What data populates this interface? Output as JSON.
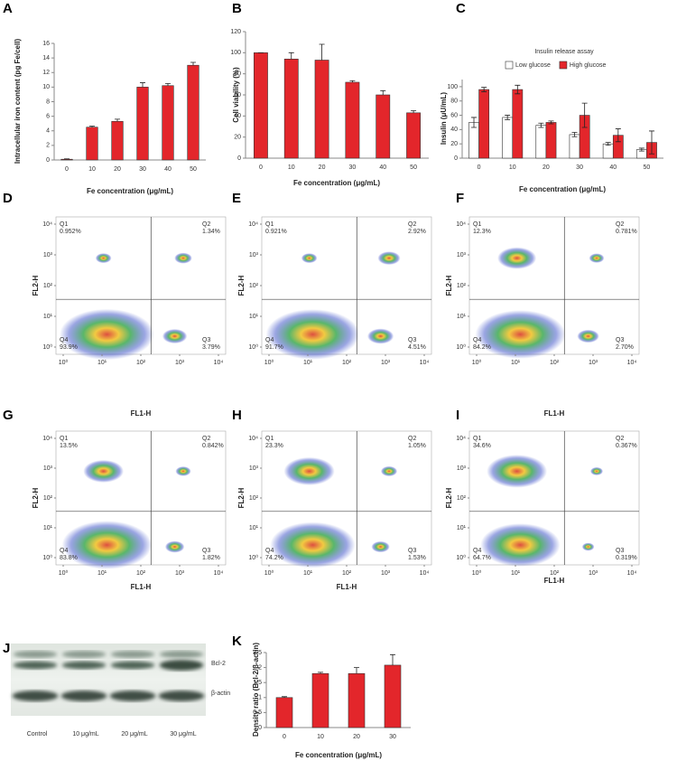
{
  "chart_data": [
    {
      "type": "bar",
      "label": "A",
      "ylabel": "Intracellular iron content (pg Fe/cell)",
      "xlabel": "Fe concentration (μg/mL)",
      "categories": [
        "0",
        "10",
        "20",
        "30",
        "40",
        "50"
      ],
      "values": [
        0.1,
        4.5,
        5.3,
        10,
        10.2,
        13
      ],
      "errors": [
        0.05,
        0.15,
        0.3,
        0.6,
        0.3,
        0.4
      ],
      "color": "#e3262b",
      "ylim": [
        0,
        16
      ],
      "yticks": [
        0,
        2,
        4,
        6,
        8,
        10,
        12,
        14,
        16
      ]
    },
    {
      "type": "bar",
      "label": "B",
      "ylabel": "Cell viability (%)",
      "xlabel": "Fe concentration (μg/mL)",
      "categories": [
        "0",
        "10",
        "20",
        "30",
        "40",
        "50"
      ],
      "values": [
        100,
        94,
        93,
        72,
        60,
        43
      ],
      "errors": [
        0,
        6,
        15,
        1.5,
        4,
        2
      ],
      "color": "#e3262b",
      "ylim": [
        0,
        120
      ],
      "yticks": [
        0,
        20,
        40,
        60,
        80,
        100,
        120
      ]
    },
    {
      "type": "bar",
      "label": "C",
      "title": "Insulin release assay",
      "ylabel": "Insulin (μU/mL)",
      "xlabel": "Fe concentration (μg/mL)",
      "categories": [
        "0",
        "10",
        "20",
        "30",
        "40",
        "50"
      ],
      "series": [
        {
          "name": "Low glucose",
          "color": "#ffffff",
          "values": [
            50,
            57,
            46,
            33,
            20,
            12
          ],
          "errors": [
            7,
            3,
            3,
            3,
            2,
            2
          ]
        },
        {
          "name": "High glucose",
          "color": "#e3262b",
          "values": [
            96,
            96,
            50,
            60,
            32,
            22
          ],
          "errors": [
            3,
            6,
            2,
            17,
            9,
            16
          ]
        }
      ],
      "ylim": [
        0,
        110
      ],
      "yticks": [
        0,
        20,
        40,
        60,
        80,
        100
      ],
      "legend": "top"
    },
    {
      "type": "flow",
      "label": "D",
      "xlabel": "FL1-H",
      "ylabel": "FL2-H",
      "log_scale": true,
      "xlim": [
        1,
        10000
      ],
      "ylim": [
        1,
        10000
      ],
      "xticks": [
        {
          "value": 1,
          "label": "10⁰"
        },
        {
          "value": 10,
          "label": "10¹"
        },
        {
          "value": 100,
          "label": "10²"
        },
        {
          "value": 1000,
          "label": "10³"
        },
        {
          "value": 10000,
          "label": "10⁴"
        }
      ],
      "yticks": [
        {
          "value": 1,
          "label": "10⁰"
        },
        {
          "value": 10,
          "label": "10¹"
        },
        {
          "value": 100,
          "label": "10²"
        },
        {
          "value": 1000,
          "label": "10³"
        },
        {
          "value": 10000,
          "label": "10⁴"
        }
      ],
      "quadrants": [
        "Q1",
        "Q2",
        "Q3",
        "Q4"
      ],
      "values": [
        0.952,
        1.34,
        3.79,
        93.9
      ],
      "value_labels": [
        "0.952%",
        "1.34%",
        "3.79%",
        "93.9%"
      ]
    },
    {
      "type": "flow",
      "label": "E",
      "ylabel": "FL2-H",
      "log_scale": true,
      "xlim": [
        1,
        10000
      ],
      "ylim": [
        1,
        10000
      ],
      "xticks": [
        {
          "value": 1,
          "label": "10⁰"
        },
        {
          "value": 10,
          "label": "10¹"
        },
        {
          "value": 100,
          "label": "10²"
        },
        {
          "value": 1000,
          "label": "10³"
        },
        {
          "value": 10000,
          "label": "10⁴"
        }
      ],
      "yticks": [
        {
          "value": 1,
          "label": "10⁰"
        },
        {
          "value": 10,
          "label": "10¹"
        },
        {
          "value": 100,
          "label": "10²"
        },
        {
          "value": 1000,
          "label": "10³"
        },
        {
          "value": 10000,
          "label": "10⁴"
        }
      ],
      "quadrants": [
        "Q1",
        "Q2",
        "Q3",
        "Q4"
      ],
      "values": [
        0.921,
        2.92,
        4.51,
        91.7
      ],
      "value_labels": [
        "0.921%",
        "2.92%",
        "4.51%",
        "91.7%"
      ]
    },
    {
      "type": "flow",
      "label": "F",
      "xlabel": "FL1-H",
      "ylabel": "FL2-H",
      "log_scale": true,
      "xlim": [
        1,
        10000
      ],
      "ylim": [
        1,
        10000
      ],
      "xticks": [
        {
          "value": 1,
          "label": "10⁰"
        },
        {
          "value": 10,
          "label": "10¹"
        },
        {
          "value": 100,
          "label": "10²"
        },
        {
          "value": 1000,
          "label": "10³"
        },
        {
          "value": 10000,
          "label": "10⁴"
        }
      ],
      "yticks": [
        {
          "value": 1,
          "label": "10⁰"
        },
        {
          "value": 10,
          "label": "10¹"
        },
        {
          "value": 100,
          "label": "10²"
        },
        {
          "value": 1000,
          "label": "10³"
        },
        {
          "value": 10000,
          "label": "10⁴"
        }
      ],
      "quadrants": [
        "Q1",
        "Q2",
        "Q3",
        "Q4"
      ],
      "values": [
        12.3,
        0.781,
        2.7,
        84.2
      ],
      "value_labels": [
        "12.3%",
        "0.781%",
        "2.70%",
        "84.2%"
      ]
    },
    {
      "type": "flow",
      "label": "G",
      "xlabel": "FL1-H",
      "ylabel": "FL2-H",
      "log_scale": true,
      "xlim": [
        1,
        10000
      ],
      "ylim": [
        1,
        10000
      ],
      "xticks": [
        {
          "value": 1,
          "label": "10⁰"
        },
        {
          "value": 10,
          "label": "10¹"
        },
        {
          "value": 100,
          "label": "10²"
        },
        {
          "value": 1000,
          "label": "10³"
        },
        {
          "value": 10000,
          "label": "10⁴"
        }
      ],
      "yticks": [
        {
          "value": 1,
          "label": "10⁰"
        },
        {
          "value": 10,
          "label": "10¹"
        },
        {
          "value": 100,
          "label": "10²"
        },
        {
          "value": 1000,
          "label": "10³"
        },
        {
          "value": 10000,
          "label": "10⁴"
        }
      ],
      "quadrants": [
        "Q1",
        "Q2",
        "Q3",
        "Q4"
      ],
      "values": [
        13.5,
        0.842,
        1.82,
        83.8
      ],
      "value_labels": [
        "13.5%",
        "0.842%",
        "1.82%",
        "83.8%"
      ]
    },
    {
      "type": "flow",
      "label": "H",
      "xlabel": "FL1-H",
      "ylabel": "FL2-H",
      "log_scale": true,
      "xlim": [
        1,
        10000
      ],
      "ylim": [
        1,
        10000
      ],
      "xticks": [
        {
          "value": 1,
          "label": "10⁰"
        },
        {
          "value": 10,
          "label": "10¹"
        },
        {
          "value": 100,
          "label": "10²"
        },
        {
          "value": 1000,
          "label": "10³"
        },
        {
          "value": 10000,
          "label": "10⁴"
        }
      ],
      "yticks": [
        {
          "value": 1,
          "label": "10⁰"
        },
        {
          "value": 10,
          "label": "10¹"
        },
        {
          "value": 100,
          "label": "10²"
        },
        {
          "value": 1000,
          "label": "10³"
        },
        {
          "value": 10000,
          "label": "10⁴"
        }
      ],
      "quadrants": [
        "Q1",
        "Q2",
        "Q3",
        "Q4"
      ],
      "values": [
        23.3,
        1.05,
        1.53,
        74.2
      ],
      "value_labels": [
        "23.3%",
        "1.05%",
        "1.53%",
        "74.2%"
      ]
    },
    {
      "type": "flow",
      "label": "I",
      "xlabel": "FL1-H",
      "ylabel": "FL2-H",
      "log_scale": true,
      "xlim": [
        1,
        10000
      ],
      "ylim": [
        1,
        10000
      ],
      "xticks": [
        {
          "value": 1,
          "label": "10⁰"
        },
        {
          "value": 10,
          "label": "10¹"
        },
        {
          "value": 100,
          "label": "10²"
        },
        {
          "value": 1000,
          "label": "10³"
        },
        {
          "value": 10000,
          "label": "10⁴"
        }
      ],
      "yticks": [
        {
          "value": 1,
          "label": "10⁰"
        },
        {
          "value": 10,
          "label": "10¹"
        },
        {
          "value": 100,
          "label": "10²"
        },
        {
          "value": 1000,
          "label": "10³"
        },
        {
          "value": 10000,
          "label": "10⁴"
        }
      ],
      "quadrants": [
        "Q1",
        "Q2",
        "Q3",
        "Q4"
      ],
      "values": [
        34.6,
        0.367,
        0.319,
        64.7
      ],
      "value_labels": [
        "34.6%",
        "0.367%",
        "0.319%",
        "64.7%"
      ]
    },
    {
      "type": "blot",
      "label": "J",
      "categories": [
        "Control",
        "10 μg/mL",
        "20 μg/mL",
        "30 μg/mL"
      ],
      "bands": [
        "Bcl-2",
        "β-actin"
      ]
    },
    {
      "type": "bar",
      "label": "K",
      "ylabel": "Density ratio (Bcl-2/β-actin)",
      "xlabel": "Fe concentration (μg/mL)",
      "categories": [
        "0",
        "10",
        "20",
        "30"
      ],
      "values": [
        1.0,
        1.8,
        1.8,
        2.08
      ],
      "errors": [
        0.03,
        0.04,
        0.2,
        0.35
      ],
      "color": "#e3262b",
      "ylim": [
        0,
        2.5
      ],
      "yticks": [
        0,
        0.5,
        1,
        1.5,
        2,
        2.5
      ]
    }
  ]
}
